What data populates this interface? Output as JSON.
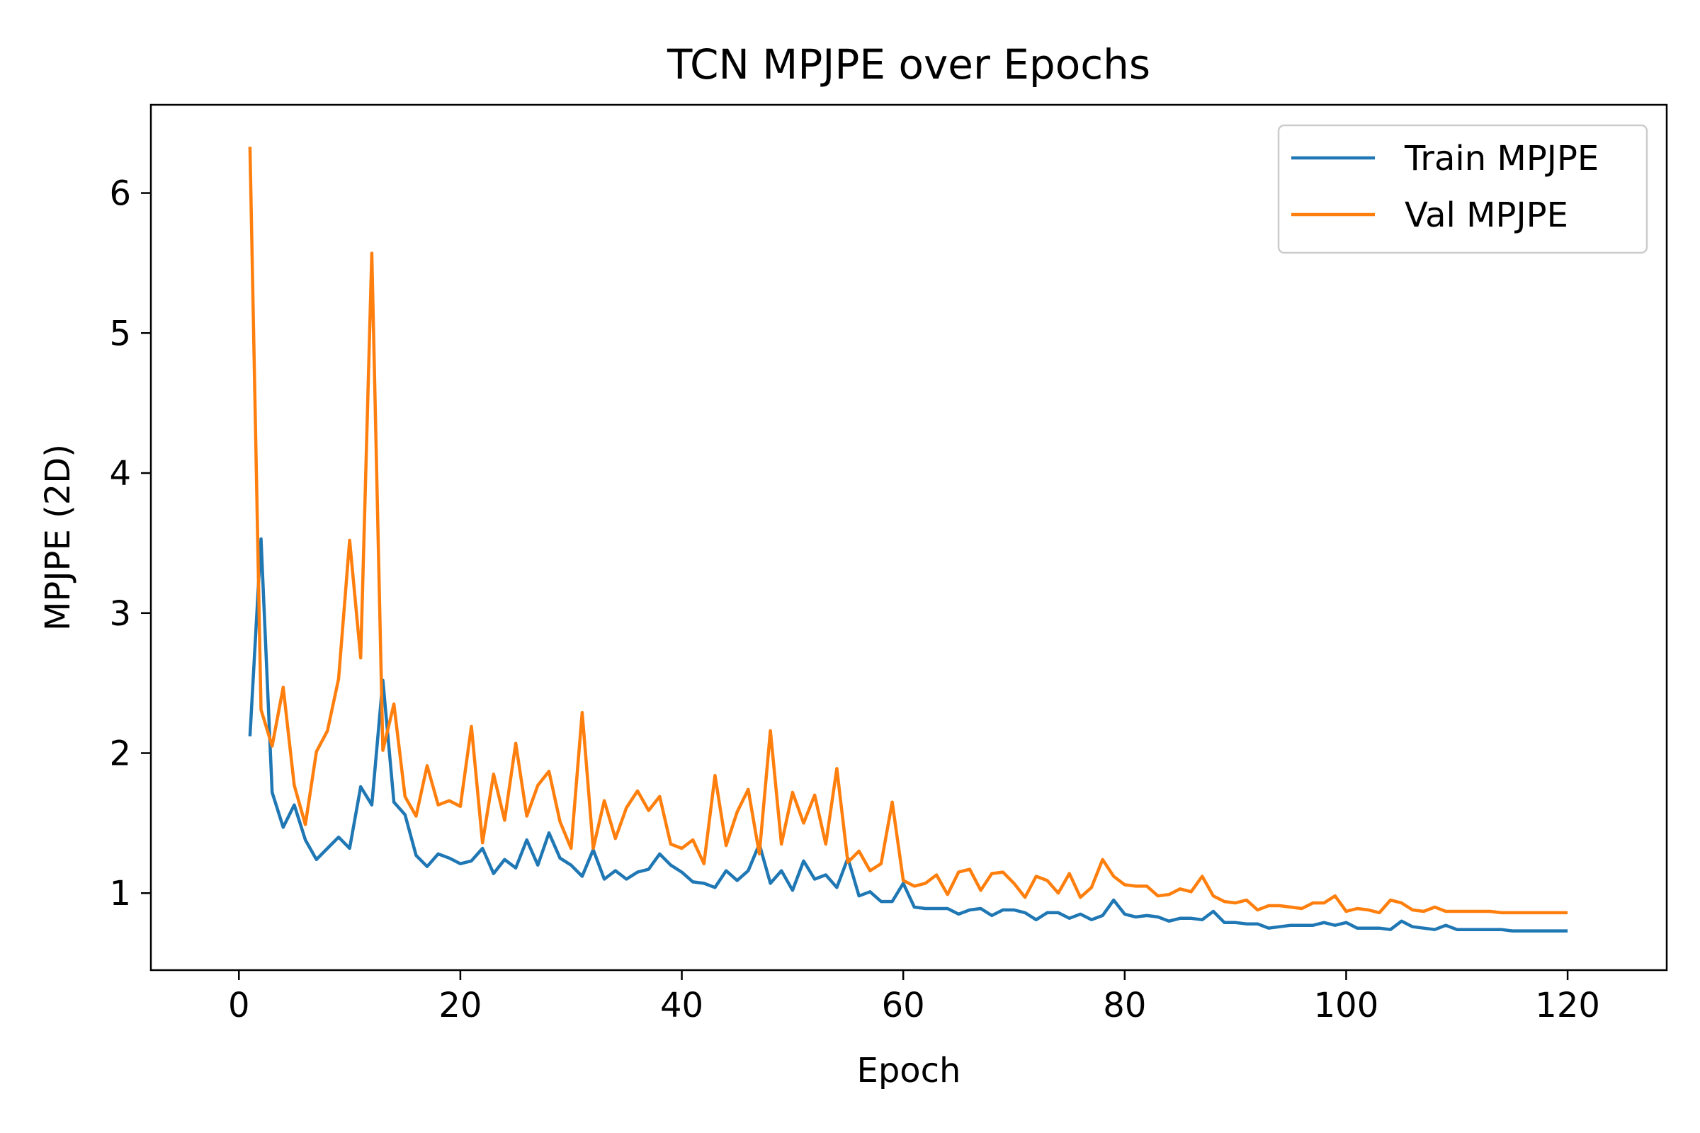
{
  "chart_data": {
    "type": "line",
    "title": "TCN MPJPE over Epochs",
    "xlabel": "Epoch",
    "ylabel": "MPJPE (2D)",
    "xlim": [
      -7.95,
      128.95
    ],
    "ylim": [
      0.45,
      6.63
    ],
    "xticks": [
      0,
      20,
      40,
      60,
      80,
      100,
      120
    ],
    "yticks": [
      1,
      2,
      3,
      4,
      5,
      6
    ],
    "grid": false,
    "legend": "upper right",
    "x": [
      1,
      2,
      3,
      4,
      5,
      6,
      7,
      8,
      9,
      10,
      11,
      12,
      13,
      14,
      15,
      16,
      17,
      18,
      19,
      20,
      21,
      22,
      23,
      24,
      25,
      26,
      27,
      28,
      29,
      30,
      31,
      32,
      33,
      34,
      35,
      36,
      37,
      38,
      39,
      40,
      41,
      42,
      43,
      44,
      45,
      46,
      47,
      48,
      49,
      50,
      51,
      52,
      53,
      54,
      55,
      56,
      57,
      58,
      59,
      60,
      61,
      62,
      63,
      64,
      65,
      66,
      67,
      68,
      69,
      70,
      71,
      72,
      73,
      74,
      75,
      76,
      77,
      78,
      79,
      80,
      81,
      82,
      83,
      84,
      85,
      86,
      87,
      88,
      89,
      90,
      91,
      92,
      93,
      94,
      95,
      96,
      97,
      98,
      99,
      100,
      101,
      102,
      103,
      104,
      105,
      106,
      107,
      108,
      109,
      110,
      111,
      112,
      113,
      114,
      115,
      116,
      117,
      118,
      119,
      120
    ],
    "series": [
      {
        "name": "Train MPJPE",
        "color": "#1f77b4",
        "values": [
          2.12,
          3.53,
          1.72,
          1.47,
          1.63,
          1.38,
          1.24,
          1.32,
          1.4,
          1.32,
          1.76,
          1.63,
          2.52,
          1.65,
          1.56,
          1.27,
          1.19,
          1.28,
          1.25,
          1.21,
          1.23,
          1.32,
          1.14,
          1.24,
          1.18,
          1.38,
          1.2,
          1.43,
          1.25,
          1.2,
          1.12,
          1.31,
          1.1,
          1.16,
          1.1,
          1.15,
          1.17,
          1.28,
          1.2,
          1.15,
          1.08,
          1.07,
          1.04,
          1.16,
          1.09,
          1.16,
          1.35,
          1.07,
          1.16,
          1.02,
          1.23,
          1.1,
          1.13,
          1.04,
          1.25,
          0.98,
          1.01,
          0.94,
          0.94,
          1.07,
          0.9,
          0.89,
          0.89,
          0.89,
          0.85,
          0.88,
          0.89,
          0.84,
          0.88,
          0.88,
          0.86,
          0.81,
          0.86,
          0.86,
          0.82,
          0.85,
          0.81,
          0.84,
          0.95,
          0.85,
          0.83,
          0.84,
          0.83,
          0.8,
          0.82,
          0.82,
          0.81,
          0.87,
          0.79,
          0.79,
          0.78,
          0.78,
          0.75,
          0.76,
          0.77,
          0.77,
          0.77,
          0.79,
          0.77,
          0.79,
          0.75,
          0.75,
          0.75,
          0.74,
          0.8,
          0.76,
          0.75,
          0.74,
          0.77,
          0.74,
          0.74,
          0.74,
          0.74,
          0.74,
          0.73,
          0.73,
          0.73,
          0.73,
          0.73,
          0.73
        ]
      },
      {
        "name": "Val MPJPE",
        "color": "#ff7f0e",
        "values": [
          6.33,
          2.31,
          2.05,
          2.47,
          1.77,
          1.49,
          2.01,
          2.16,
          2.53,
          3.52,
          2.68,
          5.57,
          2.02,
          2.35,
          1.69,
          1.55,
          1.91,
          1.63,
          1.66,
          1.62,
          2.19,
          1.36,
          1.85,
          1.52,
          2.07,
          1.55,
          1.77,
          1.87,
          1.51,
          1.32,
          2.29,
          1.32,
          1.66,
          1.39,
          1.61,
          1.73,
          1.59,
          1.69,
          1.35,
          1.32,
          1.38,
          1.21,
          1.84,
          1.34,
          1.58,
          1.74,
          1.28,
          2.16,
          1.35,
          1.72,
          1.5,
          1.7,
          1.35,
          1.89,
          1.22,
          1.3,
          1.16,
          1.21,
          1.65,
          1.09,
          1.05,
          1.07,
          1.13,
          0.99,
          1.15,
          1.17,
          1.02,
          1.14,
          1.15,
          1.07,
          0.97,
          1.12,
          1.09,
          1.0,
          1.14,
          0.97,
          1.04,
          1.24,
          1.12,
          1.06,
          1.05,
          1.05,
          0.98,
          0.99,
          1.03,
          1.01,
          1.12,
          0.98,
          0.94,
          0.93,
          0.95,
          0.88,
          0.91,
          0.91,
          0.9,
          0.89,
          0.93,
          0.93,
          0.98,
          0.87,
          0.89,
          0.88,
          0.86,
          0.95,
          0.93,
          0.88,
          0.87,
          0.9,
          0.87,
          0.87,
          0.87,
          0.87,
          0.87,
          0.86,
          0.86,
          0.86,
          0.86,
          0.86,
          0.86,
          0.86
        ]
      }
    ]
  }
}
